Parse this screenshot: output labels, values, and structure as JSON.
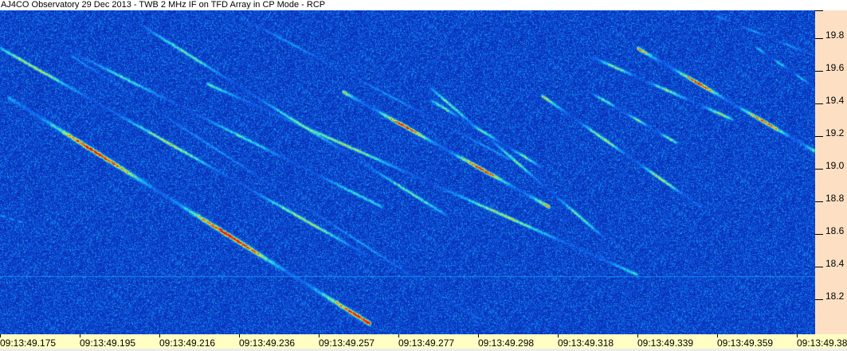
{
  "title": "AJ4CO Observatory 29 Dec 2013 - TWB 2 MHz IF on TFD Array in CP Mode - RCP",
  "y_axis": {
    "ticks": [
      "19.8",
      "19.6",
      "19.4",
      "19.2",
      "19.0",
      "18.8",
      "18.6",
      "18.4",
      "18.2"
    ]
  },
  "x_axis": {
    "ticks": [
      "09:13:49.175",
      "09:13:49.195",
      "09:13:49.216",
      "09:13:49.236",
      "09:13:49.257",
      "09:13:49.277",
      "09:13:49.298",
      "09:13:49.318",
      "09:13:49.339",
      "09:13:49.359",
      "09:13:49.380"
    ]
  },
  "colors": {
    "background_noise": "#0a3cc8",
    "title_bg": "#ffffff",
    "y_axis_bg": "#fde0c4",
    "x_axis_bg": "#ffffc4"
  }
}
